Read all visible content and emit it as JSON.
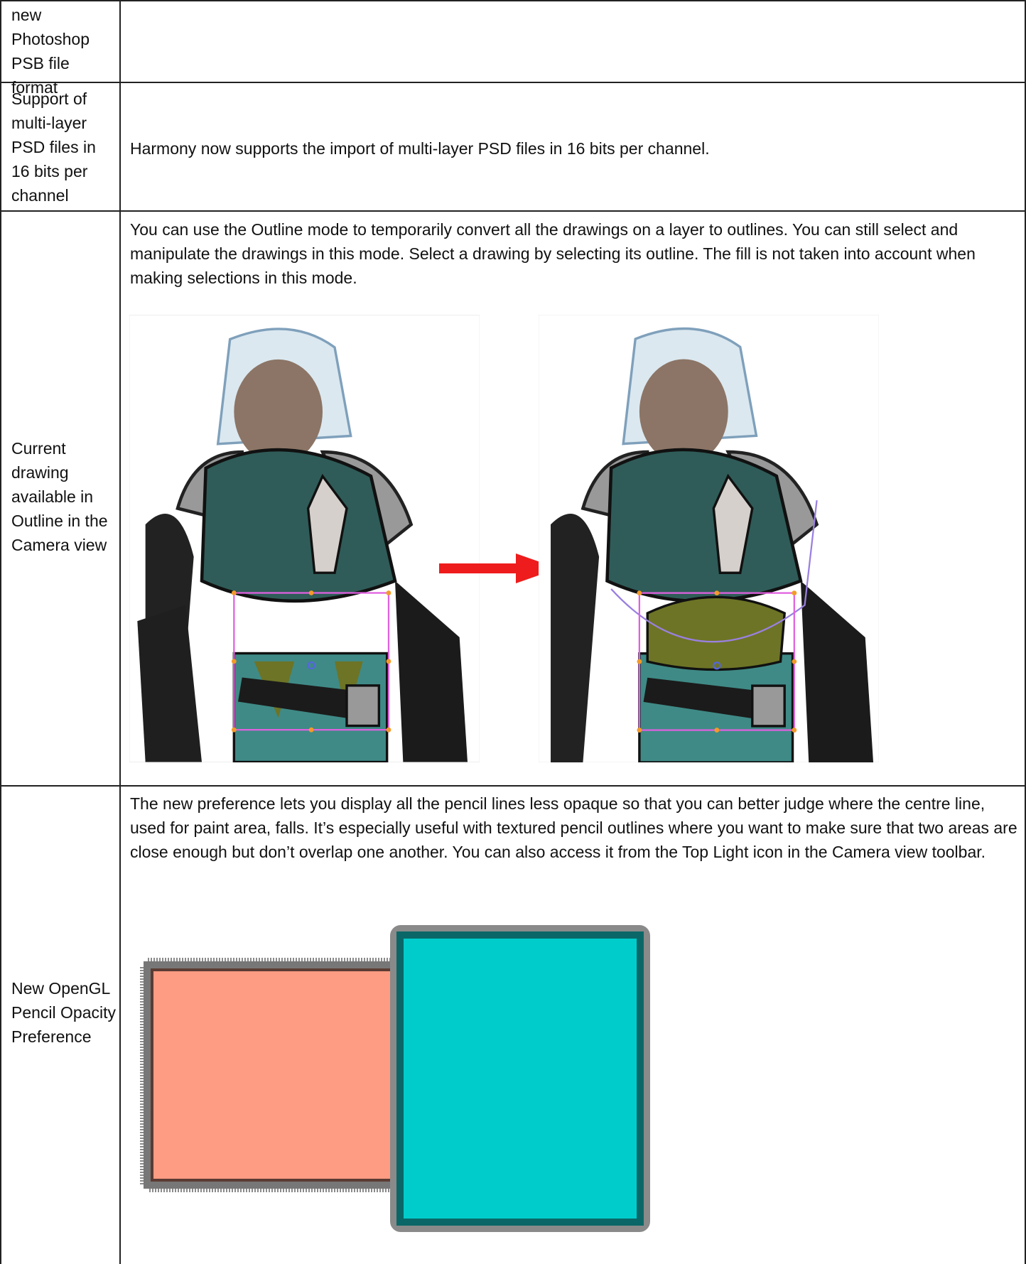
{
  "table": {
    "rows": [
      [
        "new Photoshop PSB file format",
        ""
      ],
      [
        "Support of multi-layer PSD files in 16 bits per channel",
        "Harmony now supports the import of multi-layer PSD files in 16 bits per channel."
      ],
      [
        "Current drawing available in Outline in the Camera view",
        "You can use the Outline mode to temporarily convert all the drawings on a layer to outlines. You can still select and manipulate the drawings in this mode. Select a drawing by selecting its outline. The fill is not taken into account when making selections in this mode."
      ],
      [
        "New OpenGL Pencil Opacity Preference",
        "The new preference lets you display all the pencil lines less opaque so that you can better judge where the centre line, used for paint area, falls. It’s especially useful with textured pencil outlines where you want to make sure that two areas are close enough but don’t overlap one another. You can also access it from the Top Light icon in the Camera view toolbar."
      ]
    ]
  }
}
